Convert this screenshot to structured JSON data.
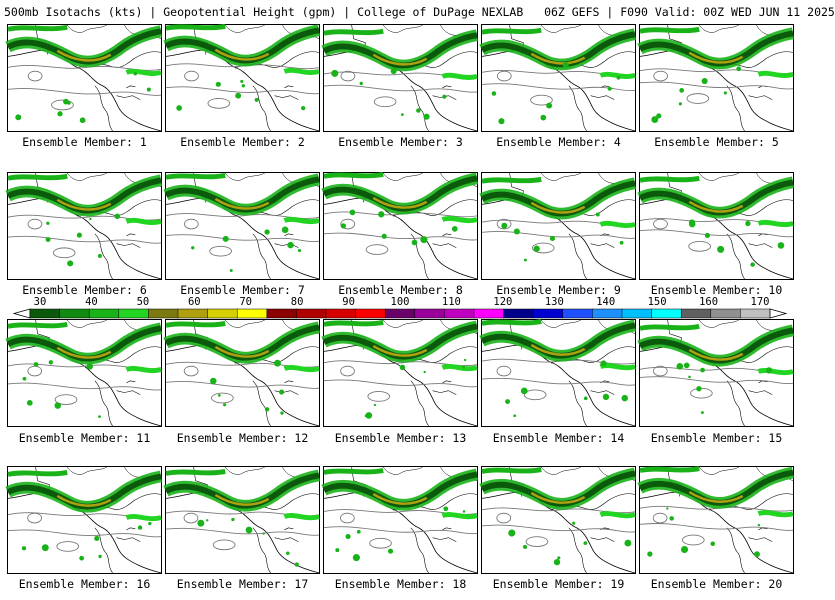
{
  "header": {
    "left": "500mb Isotachs (kts) | Geopotential Height (gpm) | College of DuPage NEXLAB",
    "right": "06Z GEFS | F090 Valid: 00Z WED JUN 11 2025"
  },
  "panels": [
    {
      "caption": "Ensemble Member: 1"
    },
    {
      "caption": "Ensemble Member: 2"
    },
    {
      "caption": "Ensemble Member: 3"
    },
    {
      "caption": "Ensemble Member: 4"
    },
    {
      "caption": "Ensemble Member: 5"
    },
    {
      "caption": "Ensemble Member: 6"
    },
    {
      "caption": "Ensemble Member: 7"
    },
    {
      "caption": "Ensemble Member: 8"
    },
    {
      "caption": "Ensemble Member: 9"
    },
    {
      "caption": "Ensemble Member: 10"
    },
    {
      "caption": "Ensemble Member: 11"
    },
    {
      "caption": "Ensemble Member: 12"
    },
    {
      "caption": "Ensemble Member: 13"
    },
    {
      "caption": "Ensemble Member: 14"
    },
    {
      "caption": "Ensemble Member: 15"
    },
    {
      "caption": "Ensemble Member: 16"
    },
    {
      "caption": "Ensemble Member: 17"
    },
    {
      "caption": "Ensemble Member: 18"
    },
    {
      "caption": "Ensemble Member: 19"
    },
    {
      "caption": "Ensemble Member: 20"
    }
  ],
  "colorbar": {
    "labels": [
      "30",
      "40",
      "50",
      "60",
      "70",
      "80",
      "90",
      "100",
      "110",
      "120",
      "130",
      "140",
      "150",
      "160",
      "170"
    ],
    "colors": [
      "#0b5a0b",
      "#128a12",
      "#19b319",
      "#22d522",
      "#7a7a10",
      "#b0a010",
      "#d6d000",
      "#ffff00",
      "#8b0000",
      "#b00000",
      "#d60000",
      "#ff0000",
      "#6a006a",
      "#9a009a",
      "#c000c0",
      "#ff00ff",
      "#00008b",
      "#0000d0",
      "#1e50ff",
      "#1e90ff",
      "#00bfff",
      "#00ffff",
      "#606060",
      "#909090",
      "#c0c0c0"
    ]
  }
}
